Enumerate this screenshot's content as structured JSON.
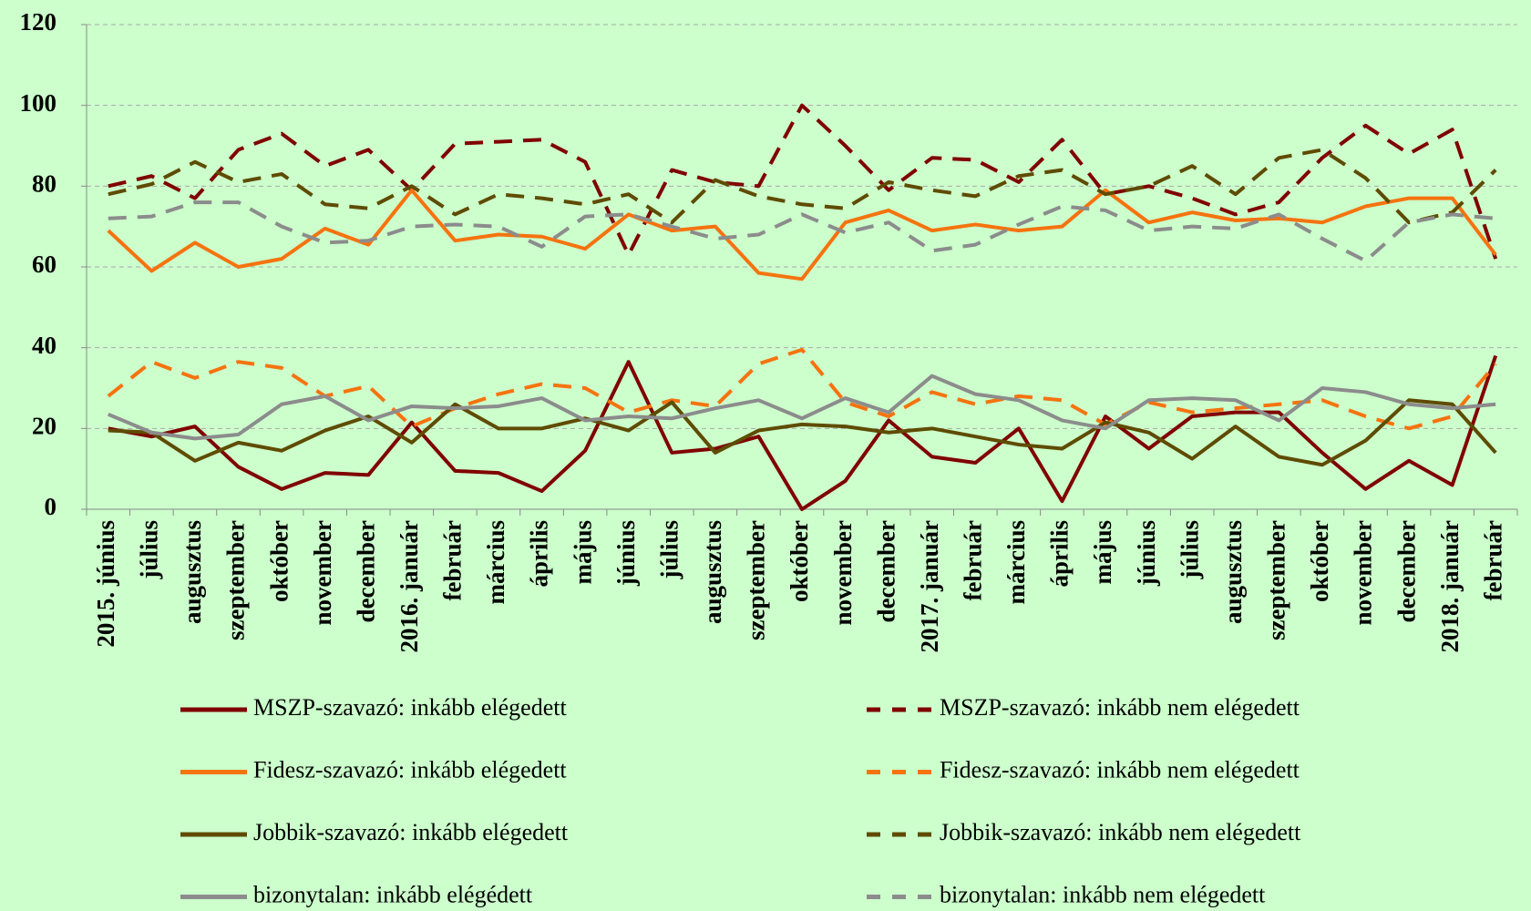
{
  "chart_data": {
    "type": "line",
    "categories": [
      "2015. június",
      "július",
      "augusztus",
      "szeptember",
      "október",
      "november",
      "december",
      "2016. január",
      "február",
      "március",
      "április",
      "május",
      "június",
      "július",
      "augusztus",
      "szeptember",
      "október",
      "november",
      "december",
      "2017. január",
      "február",
      "március",
      "április",
      "május",
      "június",
      "július",
      "augusztus",
      "szeptember",
      "október",
      "november",
      "december",
      "2018. január",
      "február"
    ],
    "series": [
      {
        "name": "MSZP-szavazó: inkább elégedett",
        "color": "#800000",
        "style": "solid",
        "values": [
          20,
          18,
          20.5,
          10.5,
          5,
          9,
          8.5,
          21.5,
          9.5,
          9,
          4.5,
          14.5,
          36.5,
          14,
          15,
          18,
          0,
          7,
          22,
          13,
          11.5,
          20,
          2,
          23,
          15,
          23,
          24,
          24,
          14,
          5,
          12,
          6,
          38
        ]
      },
      {
        "name": "MSZP-szavazó: inkább nem elégedett",
        "color": "#800000",
        "style": "dashed",
        "values": [
          80,
          82.5,
          77,
          89,
          93,
          85,
          89,
          79,
          90.5,
          91,
          91.5,
          86,
          63,
          84,
          81,
          80,
          100,
          90,
          79,
          87,
          86.5,
          81,
          91.5,
          78,
          80,
          77,
          73,
          76,
          87,
          95,
          88,
          94,
          62
        ]
      },
      {
        "name": "Fidesz-szavazó: inkább elégedett",
        "color": "#f5730f",
        "style": "solid",
        "values": [
          69,
          59,
          66,
          60,
          62,
          69.5,
          65.5,
          79,
          66.5,
          68,
          67.5,
          64.5,
          73,
          69,
          70,
          58.5,
          57,
          71,
          74,
          69,
          70.5,
          69,
          70,
          79,
          71,
          73.5,
          71.5,
          72,
          71,
          75,
          77,
          77,
          63
        ]
      },
      {
        "name": "Fidesz-szavazó: inkább nem elégedett",
        "color": "#f5730f",
        "style": "dashed",
        "values": [
          28,
          36.5,
          32.5,
          36.5,
          35,
          28,
          30.5,
          20.5,
          25,
          28.5,
          31,
          30,
          24,
          27,
          25.5,
          36,
          39.5,
          26.5,
          23,
          29,
          26,
          28,
          27,
          21,
          26.5,
          24,
          25,
          26,
          27,
          23,
          20,
          23,
          36
        ]
      },
      {
        "name": "Jobbik-szavazó: inkább elégedett",
        "color": "#5f4b00",
        "style": "solid",
        "values": [
          19.5,
          19,
          12,
          16.5,
          14.5,
          19.5,
          23,
          16.5,
          26,
          20,
          20,
          22.5,
          19.5,
          26.5,
          14,
          19.5,
          21,
          20.5,
          19,
          20,
          18,
          16,
          15,
          21.5,
          19,
          12.5,
          20.5,
          13,
          11,
          17,
          27,
          26,
          14
        ]
      },
      {
        "name": "Jobbik-szavazó: inkább nem elégedett",
        "color": "#5f4b00",
        "style": "dashed",
        "values": [
          78,
          80.5,
          86,
          81,
          83,
          75.5,
          74.5,
          80,
          73,
          78,
          77,
          75.5,
          78,
          71,
          81.5,
          77.5,
          75.5,
          74.5,
          81,
          79,
          77.5,
          82.5,
          84,
          78,
          80,
          85,
          78,
          87,
          89,
          82,
          71,
          73.5,
          84
        ]
      },
      {
        "name": "bizonytalan: inkább elégédett",
        "color": "#8c8c8c",
        "style": "solid",
        "values": [
          23.5,
          19,
          17.5,
          18.5,
          26,
          28,
          22,
          25.5,
          25,
          25.5,
          27.5,
          22,
          23,
          22.5,
          25,
          27,
          22.5,
          27.5,
          24,
          33,
          28.5,
          27,
          22,
          20,
          27,
          27.5,
          27,
          22,
          30,
          29,
          26,
          25,
          26
        ]
      },
      {
        "name": "bizonytalan: inkább nem elégedett",
        "color": "#8c8c8c",
        "style": "dashed",
        "values": [
          72,
          72.5,
          76,
          76,
          70,
          66,
          66.5,
          70,
          70.5,
          70,
          65,
          72.5,
          73,
          70,
          67,
          68,
          73,
          68.5,
          71,
          64,
          65.5,
          70.5,
          75,
          74,
          69,
          70,
          69.5,
          73,
          67,
          61.5,
          71,
          73,
          72
        ]
      }
    ],
    "ylim": [
      0,
      120
    ],
    "yticks": [
      0,
      20,
      40,
      60,
      80,
      100,
      120
    ],
    "grid": true
  }
}
